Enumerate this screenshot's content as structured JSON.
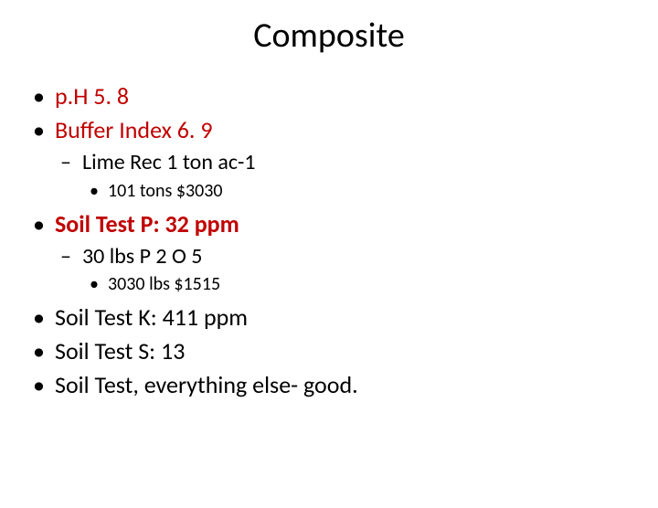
{
  "title": "Composite",
  "title_fontsize": 38,
  "title_color": "#000000",
  "body_color": "#000000",
  "accent_color": "#c00000",
  "background_color": "#ffffff",
  "font_family": "Calibri",
  "items": {
    "l1_0": "p.H 5. 8",
    "l1_1": "Buffer Index 6. 9",
    "l2_0": "Lime Rec 1 ton ac-1",
    "l3_0": "101 tons  $3030",
    "l1_2": "Soil Test P:  32 ppm",
    "l2_1": "30 lbs P 2 O 5",
    "l3_1": "3030 lbs $1515",
    "l1_3": "Soil Test K:  411 ppm",
    "l1_4": "Soil Test S:  13",
    "l1_5": "Soil Test, everything else- good."
  },
  "styles": {
    "l1_0": {
      "color": "#c00000",
      "bold": false
    },
    "l1_1": {
      "color": "#c00000",
      "bold": false
    },
    "l1_2": {
      "color": "#c00000",
      "bold": true
    }
  }
}
